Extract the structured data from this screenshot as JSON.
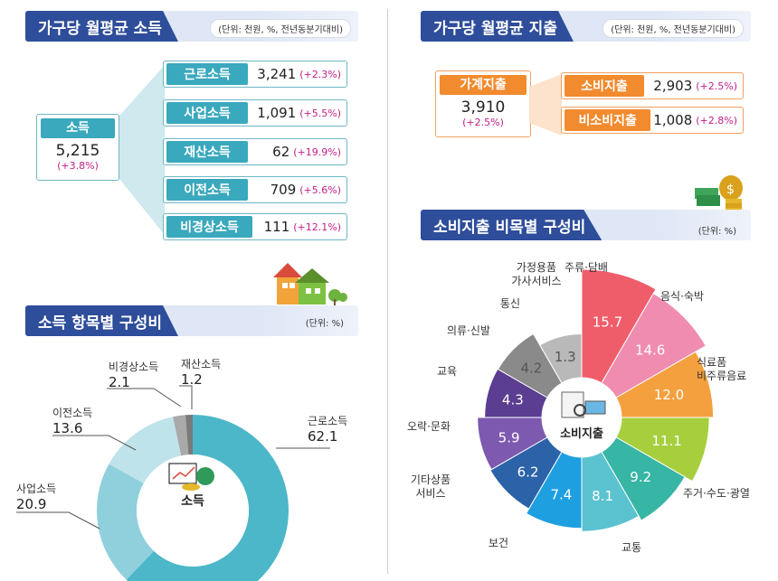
{
  "income_header": {
    "title": "가구당 월평균 소득",
    "unit": "(단위: 천원, %, 전년동분기대비)"
  },
  "income_total": {
    "label": "소득",
    "value": "5,215",
    "change": "(+3.8%)"
  },
  "income_items": [
    {
      "label": "근로소득",
      "value": "3,241",
      "change": "(+2.3%)"
    },
    {
      "label": "사업소득",
      "value": "1,091",
      "change": "(+5.5%)"
    },
    {
      "label": "재산소득",
      "value": "62",
      "change": "(+19.9%)"
    },
    {
      "label": "이전소득",
      "value": "709",
      "change": "(+5.6%)"
    },
    {
      "label": "비경상소득",
      "value": "111",
      "change": "(+12.1%)"
    }
  ],
  "expend_header": {
    "title": "가구당 월평균 지출",
    "unit": "(단위: 천원, %, 전년동분기대비)"
  },
  "expend_total": {
    "label": "가계지출",
    "value": "3,910",
    "change": "(+2.5%)"
  },
  "expend_items": [
    {
      "label": "소비지출",
      "value": "2,903",
      "change": "(+2.5%)"
    },
    {
      "label": "비소비지출",
      "value": "1,008",
      "change": "(+2.8%)"
    }
  ],
  "donut_header": {
    "title": "소득 항목별 구성비",
    "unit": "(단위: %)"
  },
  "rose_header": {
    "title": "소비지출 비목별 구성비",
    "unit": "(단위: %)"
  },
  "chart_data": [
    {
      "type": "pie",
      "center_label": "소득",
      "categories": [
        "근로소득",
        "사업소득",
        "이전소득",
        "비경상소득",
        "재산소득"
      ],
      "values": [
        62.1,
        20.9,
        13.6,
        2.1,
        1.2
      ],
      "colors": [
        "#4cb7c8",
        "#8fd0dc",
        "#bfe3ea",
        "#a9a9a9",
        "#7a7a7a"
      ]
    },
    {
      "type": "pie",
      "center_label": "소비지출",
      "categories": [
        "음식·숙박",
        "식료품 비주류음료",
        "주거·수도·광열",
        "교통",
        "보건",
        "기타상품 서비스",
        "오락·문화",
        "교육",
        "의류·신발",
        "통신",
        "가정용품 가사서비스",
        "주류·담배"
      ],
      "values": [
        15.7,
        14.6,
        12.0,
        11.1,
        9.2,
        8.1,
        7.4,
        6.2,
        5.9,
        4.3,
        4.2,
        1.3
      ],
      "colors": [
        "#ef5d6b",
        "#f08cb0",
        "#f5a03e",
        "#a7cf3d",
        "#37b5a5",
        "#5bc3d0",
        "#1e9fe0",
        "#2b62a8",
        "#7d59b0",
        "#5b3d91",
        "#8a8a8a",
        "#b9b9b9"
      ]
    }
  ]
}
